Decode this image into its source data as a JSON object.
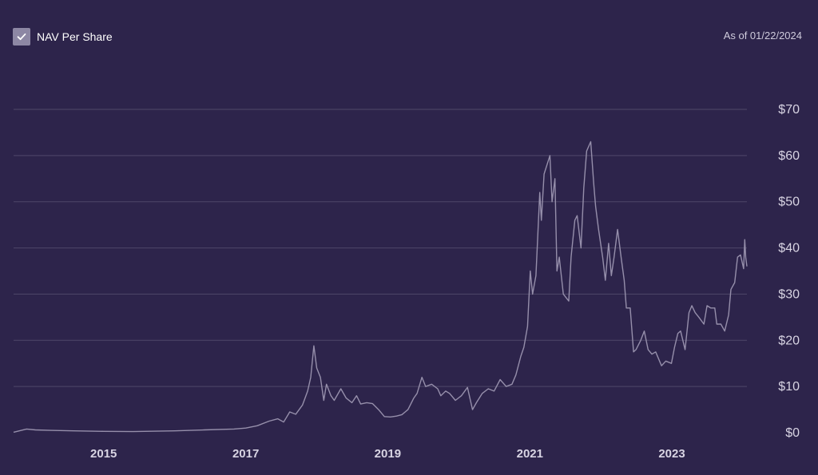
{
  "legend": {
    "label": "NAV Per Share",
    "checked": true,
    "checkbox_color": "#8d87a4",
    "check_icon": "check-icon"
  },
  "as_of": "As of 01/22/2024",
  "colors": {
    "background": "#2d244b",
    "grid": "#4f4769",
    "line": "#968fab",
    "text": "#d8d4e3"
  },
  "chart_data": {
    "type": "line",
    "title": "",
    "xlabel": "",
    "ylabel": "",
    "ylim": [
      0,
      70
    ],
    "xlim": [
      "2013-09-25",
      "2024-01-22"
    ],
    "y_ticks": [
      0,
      10,
      20,
      30,
      40,
      50,
      60,
      70
    ],
    "y_tick_labels": [
      "$0",
      "$10",
      "$20",
      "$30",
      "$40",
      "$50",
      "$60",
      "$70"
    ],
    "x_ticks": [
      "2015-01-01",
      "2017-01-01",
      "2019-01-01",
      "2021-01-01",
      "2023-01-01"
    ],
    "x_tick_labels": [
      "2015",
      "2017",
      "2019",
      "2021",
      "2023"
    ],
    "grid": true,
    "series": [
      {
        "name": "NAV Per Share",
        "points": [
          [
            "2013-09-25",
            0.1
          ],
          [
            "2013-12-01",
            0.8
          ],
          [
            "2014-01-15",
            0.6
          ],
          [
            "2014-04-01",
            0.5
          ],
          [
            "2014-08-01",
            0.4
          ],
          [
            "2015-01-01",
            0.3
          ],
          [
            "2015-06-01",
            0.25
          ],
          [
            "2016-01-01",
            0.4
          ],
          [
            "2016-06-01",
            0.6
          ],
          [
            "2016-11-01",
            0.8
          ],
          [
            "2017-01-01",
            1.0
          ],
          [
            "2017-03-01",
            1.5
          ],
          [
            "2017-05-01",
            2.5
          ],
          [
            "2017-06-15",
            3.0
          ],
          [
            "2017-07-15",
            2.3
          ],
          [
            "2017-08-15",
            4.5
          ],
          [
            "2017-09-15",
            4.0
          ],
          [
            "2017-10-20",
            6.0
          ],
          [
            "2017-11-15",
            9.0
          ],
          [
            "2017-12-01",
            12.0
          ],
          [
            "2017-12-17",
            18.8
          ],
          [
            "2018-01-01",
            14.0
          ],
          [
            "2018-01-20",
            12.0
          ],
          [
            "2018-02-06",
            7.0
          ],
          [
            "2018-02-20",
            10.5
          ],
          [
            "2018-03-15",
            8.0
          ],
          [
            "2018-04-01",
            7.0
          ],
          [
            "2018-05-05",
            9.5
          ],
          [
            "2018-06-01",
            7.5
          ],
          [
            "2018-07-01",
            6.5
          ],
          [
            "2018-07-25",
            8.0
          ],
          [
            "2018-08-15",
            6.2
          ],
          [
            "2018-09-15",
            6.5
          ],
          [
            "2018-10-15",
            6.3
          ],
          [
            "2018-11-15",
            5.0
          ],
          [
            "2018-12-15",
            3.5
          ],
          [
            "2019-01-15",
            3.4
          ],
          [
            "2019-02-15",
            3.6
          ],
          [
            "2019-03-15",
            3.9
          ],
          [
            "2019-04-15",
            5.0
          ],
          [
            "2019-05-15",
            7.5
          ],
          [
            "2019-06-01",
            8.5
          ],
          [
            "2019-06-26",
            12.0
          ],
          [
            "2019-07-15",
            10.0
          ],
          [
            "2019-08-15",
            10.5
          ],
          [
            "2019-09-15",
            9.5
          ],
          [
            "2019-10-01",
            8.0
          ],
          [
            "2019-10-26",
            9.0
          ],
          [
            "2019-11-15",
            8.5
          ],
          [
            "2019-12-15",
            7.0
          ],
          [
            "2020-01-15",
            8.0
          ],
          [
            "2020-02-15",
            9.8
          ],
          [
            "2020-03-12",
            5.0
          ],
          [
            "2020-04-01",
            6.5
          ],
          [
            "2020-05-01",
            8.5
          ],
          [
            "2020-06-01",
            9.5
          ],
          [
            "2020-07-01",
            9.0
          ],
          [
            "2020-08-01",
            11.5
          ],
          [
            "2020-09-01",
            10.0
          ],
          [
            "2020-10-01",
            10.5
          ],
          [
            "2020-10-21",
            12.5
          ],
          [
            "2020-11-15",
            16.5
          ],
          [
            "2020-12-01",
            18.5
          ],
          [
            "2020-12-20",
            23.0
          ],
          [
            "2021-01-03",
            35.0
          ],
          [
            "2021-01-15",
            30.0
          ],
          [
            "2021-02-01",
            34.0
          ],
          [
            "2021-02-21",
            52.0
          ],
          [
            "2021-03-01",
            46.0
          ],
          [
            "2021-03-15",
            56.0
          ],
          [
            "2021-04-14",
            60.0
          ],
          [
            "2021-04-25",
            50.0
          ],
          [
            "2021-05-10",
            55.0
          ],
          [
            "2021-05-20",
            35.0
          ],
          [
            "2021-06-01",
            38.0
          ],
          [
            "2021-06-22",
            30.0
          ],
          [
            "2021-07-20",
            28.5
          ],
          [
            "2021-08-01",
            38.0
          ],
          [
            "2021-08-20",
            46.0
          ],
          [
            "2021-09-01",
            47.0
          ],
          [
            "2021-09-21",
            40.0
          ],
          [
            "2021-10-05",
            53.0
          ],
          [
            "2021-10-20",
            61.0
          ],
          [
            "2021-11-10",
            63.0
          ],
          [
            "2021-11-25",
            54.0
          ],
          [
            "2021-12-05",
            49.0
          ],
          [
            "2021-12-20",
            44.0
          ],
          [
            "2022-01-10",
            38.0
          ],
          [
            "2022-01-24",
            33.0
          ],
          [
            "2022-02-10",
            41.0
          ],
          [
            "2022-02-24",
            34.0
          ],
          [
            "2022-03-10",
            38.0
          ],
          [
            "2022-03-28",
            44.0
          ],
          [
            "2022-04-15",
            38.0
          ],
          [
            "2022-05-01",
            33.0
          ],
          [
            "2022-05-12",
            27.0
          ],
          [
            "2022-06-01",
            27.0
          ],
          [
            "2022-06-18",
            17.5
          ],
          [
            "2022-07-01",
            18.0
          ],
          [
            "2022-07-25",
            20.0
          ],
          [
            "2022-08-12",
            22.0
          ],
          [
            "2022-09-01",
            18.0
          ],
          [
            "2022-09-20",
            17.0
          ],
          [
            "2022-10-10",
            17.5
          ],
          [
            "2022-11-09",
            14.5
          ],
          [
            "2022-12-01",
            15.5
          ],
          [
            "2022-12-30",
            15.0
          ],
          [
            "2023-01-15",
            18.5
          ],
          [
            "2023-02-01",
            21.5
          ],
          [
            "2023-02-15",
            22.0
          ],
          [
            "2023-03-10",
            18.0
          ],
          [
            "2023-03-30",
            26.0
          ],
          [
            "2023-04-14",
            27.5
          ],
          [
            "2023-05-01",
            26.0
          ],
          [
            "2023-05-20",
            25.0
          ],
          [
            "2023-06-15",
            23.5
          ],
          [
            "2023-07-01",
            27.5
          ],
          [
            "2023-07-20",
            27.0
          ],
          [
            "2023-08-10",
            27.0
          ],
          [
            "2023-08-20",
            23.5
          ],
          [
            "2023-09-10",
            23.5
          ],
          [
            "2023-09-30",
            22.0
          ],
          [
            "2023-10-20",
            25.5
          ],
          [
            "2023-11-01",
            31.0
          ],
          [
            "2023-11-20",
            32.5
          ],
          [
            "2023-12-05",
            38.0
          ],
          [
            "2023-12-20",
            38.5
          ],
          [
            "2024-01-05",
            35.5
          ],
          [
            "2024-01-11",
            41.8
          ],
          [
            "2024-01-16",
            38.0
          ],
          [
            "2024-01-22",
            36.0
          ]
        ]
      }
    ]
  }
}
